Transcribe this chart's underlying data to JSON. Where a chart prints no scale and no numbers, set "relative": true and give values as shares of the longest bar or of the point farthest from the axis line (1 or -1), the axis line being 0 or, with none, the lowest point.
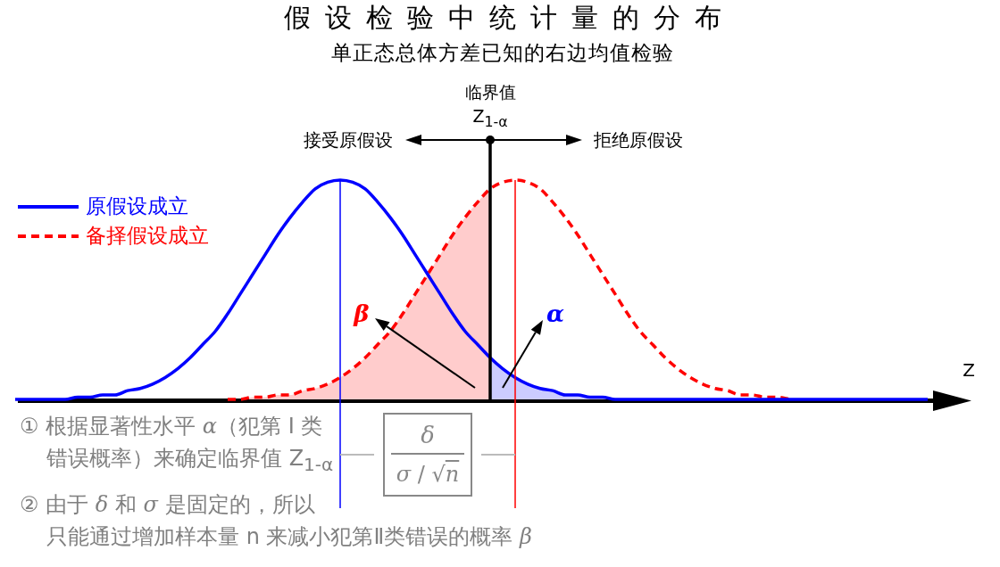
{
  "chart_data": {
    "type": "line",
    "title": "假设检验中统计量的分布",
    "subtitle": "单正态总体方差已知的右边均值检验",
    "xlabel": "Z",
    "relative": true,
    "legend": "top left",
    "marker": "none",
    "categories": [
      null,
      null,
      null,
      null,
      null,
      null,
      null,
      null,
      null,
      null,
      null,
      null,
      null,
      null,
      null,
      null,
      null,
      null,
      null,
      null,
      null,
      null,
      null,
      null,
      null,
      null,
      null,
      null,
      null,
      null,
      null,
      null,
      null,
      null,
      null,
      null,
      null,
      null,
      null,
      null,
      null,
      null,
      null,
      null,
      null,
      null,
      null,
      null,
      null,
      null,
      null,
      null,
      null,
      null,
      null,
      null,
      null,
      null,
      null,
      null,
      null,
      null,
      null,
      null,
      null,
      null,
      null,
      null,
      null,
      null,
      null,
      null,
      null,
      null,
      null,
      null
    ],
    "series": [
      {
        "type": "area",
        "color": "#ffcccc",
        "values": [
          null,
          null,
          null,
          null,
          null,
          null,
          null,
          null,
          null,
          null,
          null,
          null,
          null,
          null,
          null,
          null,
          null,
          0,
          0,
          0.01,
          0.01,
          0.02,
          0.02,
          0.04,
          0.05,
          0.07,
          0.1,
          0.14,
          0.19,
          0.25,
          0.31,
          0.39,
          0.48,
          0.57,
          0.66,
          0.75,
          0.83,
          0.9,
          0.96,
          null,
          null,
          null,
          null,
          null,
          null,
          null,
          null,
          null,
          null,
          null,
          null,
          null,
          null,
          null,
          null,
          null,
          null,
          null,
          null,
          null,
          null,
          null,
          null,
          null,
          null,
          null,
          null,
          null,
          null,
          null,
          null,
          null,
          null,
          null,
          null,
          null
        ]
      },
      {
        "type": "area",
        "color": "#ccccff",
        "values": [
          null,
          null,
          null,
          null,
          null,
          null,
          null,
          null,
          null,
          null,
          null,
          null,
          null,
          null,
          null,
          null,
          null,
          null,
          null,
          null,
          null,
          null,
          null,
          null,
          null,
          null,
          null,
          null,
          null,
          null,
          null,
          null,
          null,
          null,
          null,
          null,
          null,
          null,
          0.19,
          0.14,
          0.1,
          0.07,
          0.05,
          0.04,
          0.02,
          0.02,
          0.01,
          0.01,
          0,
          0,
          0,
          0,
          0,
          0,
          0,
          0,
          0,
          0,
          0,
          0,
          0,
          0,
          0,
          0,
          0,
          0,
          0,
          0,
          0,
          0,
          0,
          0,
          0,
          0,
          null,
          null
        ]
      },
      {
        "name": "原假设成立",
        "color": "#0000ff",
        "line_style": "solid",
        "values": [
          0,
          0,
          0,
          0,
          0,
          0.01,
          0.01,
          0.02,
          0.02,
          0.04,
          0.05,
          0.07,
          0.1,
          0.14,
          0.19,
          0.25,
          0.31,
          0.39,
          0.48,
          0.57,
          0.66,
          0.75,
          0.83,
          0.9,
          0.96,
          0.99,
          1.0,
          0.99,
          0.96,
          0.9,
          0.83,
          0.75,
          0.66,
          0.57,
          0.48,
          0.39,
          0.31,
          0.25,
          0.19,
          0.14,
          0.1,
          0.07,
          0.05,
          0.04,
          0.02,
          0.02,
          0.01,
          0.01,
          0,
          0,
          0,
          0,
          0,
          0,
          0,
          0,
          0,
          0,
          0,
          0,
          0,
          0,
          0,
          0,
          0,
          0,
          0,
          0,
          0,
          0,
          0,
          0,
          0,
          0,
          null,
          null
        ]
      },
      {
        "name": "备择假设成立",
        "color": "#ff0000",
        "line_style": "dashed",
        "values": [
          null,
          null,
          null,
          null,
          null,
          null,
          null,
          null,
          null,
          null,
          null,
          null,
          null,
          null,
          null,
          null,
          null,
          0,
          0,
          0.01,
          0.01,
          0.02,
          0.02,
          0.04,
          0.05,
          0.07,
          0.1,
          0.14,
          0.19,
          0.25,
          0.31,
          0.39,
          0.48,
          0.57,
          0.66,
          0.75,
          0.83,
          0.9,
          0.96,
          0.99,
          1.0,
          0.99,
          0.96,
          0.9,
          0.83,
          0.75,
          0.66,
          0.57,
          0.48,
          0.39,
          0.31,
          0.25,
          0.19,
          0.14,
          0.1,
          0.07,
          0.05,
          0.04,
          0.02,
          0.02,
          0.01,
          0.01,
          0,
          null,
          null,
          null,
          null,
          null,
          null,
          null,
          null,
          null,
          null,
          null,
          null,
          null
        ]
      }
    ],
    "annotations": [
      "临界值Z$_{1-α}$",
      "接受原假设",
      "拒绝原假设",
      "δ\nσ / √n",
      "① 根据显著性水平 α（犯第 Ⅰ 类错误概率）来确定临界值 Z$_{1-α}$",
      "② 由于 δ 和 σ 是固定的，所以只能通过增加样本量 n 来减小犯第Ⅱ类错误的概率 β",
      "β",
      "α"
    ]
  }
}
